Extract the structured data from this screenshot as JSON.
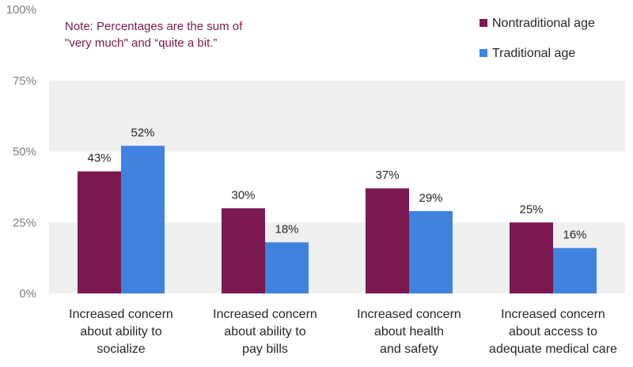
{
  "chart_data": {
    "type": "bar",
    "categories": [
      [
        "Increased concern",
        "about ability to",
        "socialize"
      ],
      [
        "Increased concern",
        "about ability to",
        "pay bills"
      ],
      [
        "Increased concern",
        "about health",
        "and safety"
      ],
      [
        "Increased concern",
        "about access to",
        "adequate medical care"
      ]
    ],
    "series": [
      {
        "name": "Nontraditional age",
        "values": [
          43,
          30,
          37,
          25
        ],
        "labels": [
          "43%",
          "30%",
          "37%",
          "25%"
        ],
        "color": "#7b1850"
      },
      {
        "name": "Traditional age",
        "values": [
          52,
          18,
          29,
          16
        ],
        "labels": [
          "52%",
          "18%",
          "29%",
          "16%"
        ],
        "color": "#3f82e0"
      }
    ],
    "yticks": [
      0,
      25,
      50,
      75,
      100
    ],
    "ytick_labels": [
      "0%",
      "25%",
      "50%",
      "75%",
      "100%"
    ],
    "ylim": [
      0,
      100
    ],
    "grid": false,
    "legend_position": "top-right",
    "note": [
      "Note: Percentages are the sum of",
      "\"very much\" and “quite a bit.”"
    ],
    "colors": {
      "plot_band": "#efefef",
      "note_text": "#7b1850",
      "tick_text": "#7f7f7f"
    }
  }
}
